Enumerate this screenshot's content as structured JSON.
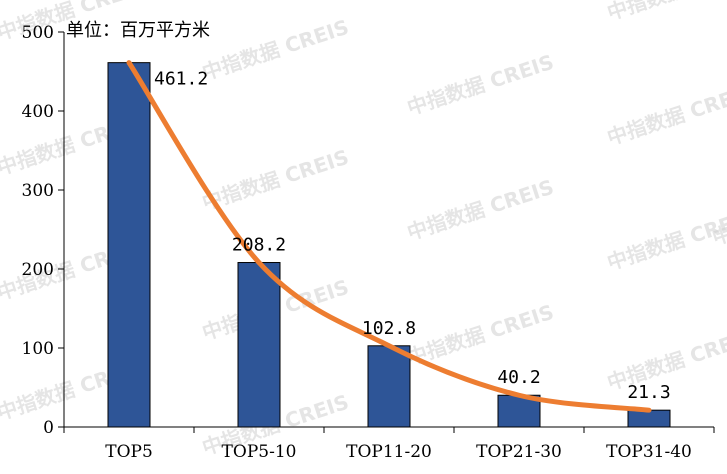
{
  "watermark": "中指数据 CREIS",
  "chart_data": {
    "type": "bar",
    "unit_label": "单位：百万平方米",
    "categories": [
      "TOP5",
      "TOP5-10",
      "TOP11-20",
      "TOP21-30",
      "TOP31-40"
    ],
    "values": [
      461.2,
      208.2,
      102.8,
      40.2,
      21.3
    ],
    "value_labels": [
      "461.2",
      "208.2",
      "102.8",
      "40.2",
      "21.3"
    ],
    "ylim": [
      0,
      500
    ],
    "yticks": [
      0,
      100,
      200,
      300,
      400,
      500
    ],
    "bar_color": "#2E5597",
    "trend_color": "#ED7D31",
    "trend_line": true,
    "grid": false,
    "legend": "none"
  }
}
